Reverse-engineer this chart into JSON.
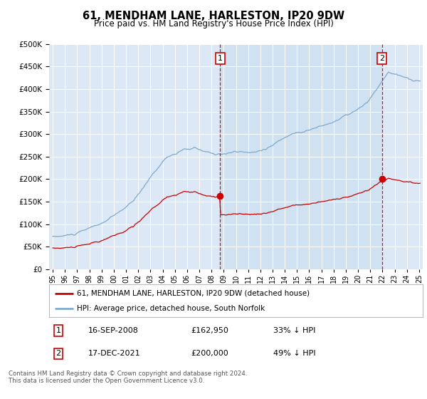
{
  "title": "61, MENDHAM LANE, HARLESTON, IP20 9DW",
  "subtitle": "Price paid vs. HM Land Registry's House Price Index (HPI)",
  "legend_line1": "61, MENDHAM LANE, HARLESTON, IP20 9DW (detached house)",
  "legend_line2": "HPI: Average price, detached house, South Norfolk",
  "footer": "Contains HM Land Registry data © Crown copyright and database right 2024.\nThis data is licensed under the Open Government Licence v3.0.",
  "sale1_label": "1",
  "sale1_date_str": "16-SEP-2008",
  "sale1_price": 162950,
  "sale1_hpi_pct": "33% ↓ HPI",
  "sale2_label": "2",
  "sale2_date_str": "17-DEC-2021",
  "sale2_price": 200000,
  "sale2_hpi_pct": "49% ↓ HPI",
  "sale1_date": 2008.71,
  "sale2_date": 2021.96,
  "hpi_color": "#7eaacc",
  "sale_color": "#cc0000",
  "bg_color": "#dce8f5",
  "shade_color": "#c8ddf0",
  "annotation_box_color": "#cc0000",
  "ylim": [
    0,
    500000
  ],
  "xlim_start": 1994.7,
  "xlim_end": 2025.3
}
